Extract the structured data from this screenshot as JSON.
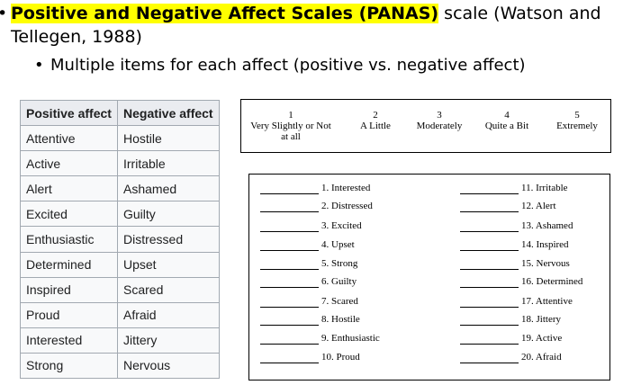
{
  "heading": {
    "bullet": "•",
    "highlight": "Positive and Negative Affect Scales (PANAS)",
    "rest_line1": " scale (Watson and",
    "line2": "Tellegen, 1988)"
  },
  "subbullet": {
    "bullet": "•",
    "text": "Multiple items for each affect (positive vs. negative affect)"
  },
  "table": {
    "headers": [
      "Positive affect",
      "Negative affect"
    ],
    "rows": [
      [
        "Attentive",
        "Hostile"
      ],
      [
        "Active",
        "Irritable"
      ],
      [
        "Alert",
        "Ashamed"
      ],
      [
        "Excited",
        "Guilty"
      ],
      [
        "Enthusiastic",
        "Distressed"
      ],
      [
        "Determined",
        "Upset"
      ],
      [
        "Inspired",
        "Scared"
      ],
      [
        "Proud",
        "Afraid"
      ],
      [
        "Interested",
        "Jittery"
      ],
      [
        "Strong",
        "Nervous"
      ]
    ]
  },
  "scale": [
    {
      "number": "1",
      "label1": "Very Slightly or Not",
      "label2": "at all"
    },
    {
      "number": "2",
      "label1": "A Little",
      "label2": ""
    },
    {
      "number": "3",
      "label1": "Moderately",
      "label2": ""
    },
    {
      "number": "4",
      "label1": "Quite a Bit",
      "label2": ""
    },
    {
      "number": "5",
      "label1": "Extremely",
      "label2": ""
    }
  ],
  "items_left": [
    "1. Interested",
    "2. Distressed",
    "3. Excited",
    "4. Upset",
    "5. Strong",
    "6. Guilty",
    "7. Scared",
    "8. Hostile",
    "9. Enthusiastic",
    "10. Proud"
  ],
  "items_right": [
    "11. Irritable",
    "12. Alert",
    "13. Ashamed",
    "14. Inspired",
    "15. Nervous",
    "16. Determined",
    "17. Attentive",
    "18. Jittery",
    "19. Active",
    "20. Afraid"
  ]
}
